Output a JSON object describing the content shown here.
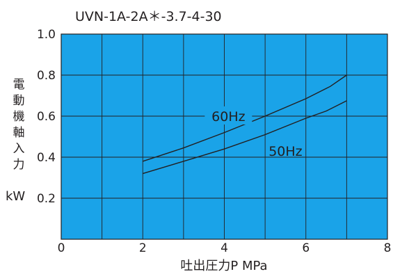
{
  "chart_data": {
    "type": "line",
    "title": "UVN-1A-2A＊-3.7-4-30",
    "xlabel": "吐出圧力P MPa",
    "ylabel": [
      "電",
      "動",
      "機",
      "軸",
      "入",
      "力"
    ],
    "yunit": "kW",
    "xlim": [
      0,
      8
    ],
    "ylim": [
      0,
      1.0
    ],
    "xticks": [
      "0",
      "2",
      "4",
      "6",
      "8"
    ],
    "yticks": [
      "0.2",
      "0.4",
      "0.6",
      "0.8",
      "1.0"
    ],
    "grid": true,
    "plot_bg": "#1aa3e8",
    "line_color": "#231f20",
    "series": [
      {
        "name": "60Hz",
        "points": [
          [
            2.0,
            0.38
          ],
          [
            3.0,
            0.445
          ],
          [
            4.0,
            0.52
          ],
          [
            5.0,
            0.6
          ],
          [
            6.0,
            0.685
          ],
          [
            6.6,
            0.745
          ],
          [
            7.0,
            0.8
          ]
        ]
      },
      {
        "name": "50Hz",
        "points": [
          [
            2.0,
            0.32
          ],
          [
            3.0,
            0.38
          ],
          [
            4.0,
            0.44
          ],
          [
            5.0,
            0.51
          ],
          [
            6.0,
            0.59
          ],
          [
            6.5,
            0.625
          ],
          [
            7.0,
            0.675
          ]
        ]
      }
    ]
  }
}
